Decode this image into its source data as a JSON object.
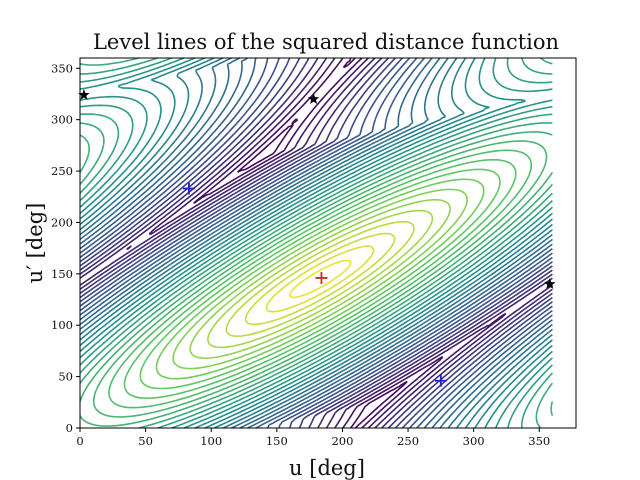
{
  "chart_data": {
    "type": "contour",
    "title": "Level lines of the squared distance function",
    "xlabel": "u [deg]",
    "ylabel": "u′ [deg]",
    "xlim": [
      0,
      378
    ],
    "ylim": [
      0,
      360
    ],
    "grid": false,
    "legend": "none",
    "x_ticks": [
      0,
      50,
      100,
      150,
      200,
      250,
      300,
      350
    ],
    "y_ticks": [
      0,
      50,
      100,
      150,
      200,
      250,
      300,
      350
    ],
    "data_extent": {
      "u": [
        0,
        360
      ],
      "u_prime": [
        0,
        360
      ]
    },
    "colormap": "viridis",
    "levels": 35,
    "function_shape": {
      "center": [
        183,
        145
      ],
      "description": "squared distance between periodic points; elongated minimum along the diagonal"
    },
    "markers": [
      {
        "label": "plus-red",
        "symbol": "+",
        "color": "#d62728",
        "u": 184,
        "u_prime": 146
      },
      {
        "label": "plus-blue",
        "symbol": "+",
        "color": "#1f1fd6",
        "u": 83,
        "u_prime": 233
      },
      {
        "label": "plus-blue",
        "symbol": "+",
        "color": "#1f1fd6",
        "u": 275,
        "u_prime": 46
      },
      {
        "label": "star-black",
        "symbol": "*",
        "color": "#000000",
        "u": 3,
        "u_prime": 324
      },
      {
        "label": "star-black",
        "symbol": "*",
        "color": "#000000",
        "u": 178,
        "u_prime": 320
      },
      {
        "label": "star-black",
        "symbol": "*",
        "color": "#000000",
        "u": 358,
        "u_prime": 140
      }
    ]
  }
}
